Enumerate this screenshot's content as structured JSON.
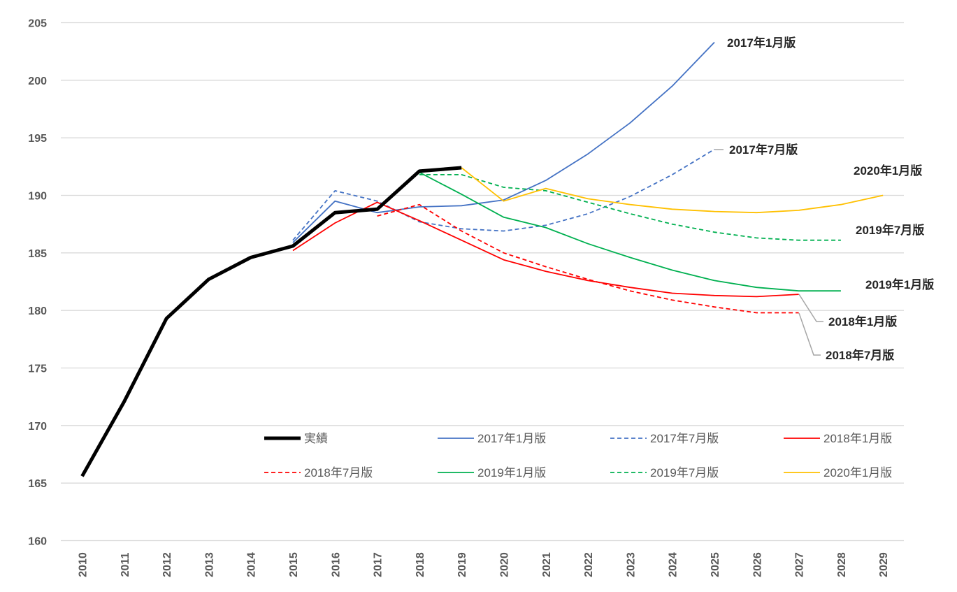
{
  "chart_data": {
    "type": "line",
    "x": [
      2010,
      2011,
      2012,
      2013,
      2014,
      2015,
      2016,
      2017,
      2018,
      2019,
      2020,
      2021,
      2022,
      2023,
      2024,
      2025,
      2026,
      2027,
      2028,
      2029
    ],
    "x_tick_labels": [
      "2010",
      "2011",
      "2012",
      "2013",
      "2014",
      "2015",
      "2016",
      "2017",
      "2018",
      "2019",
      "2020",
      "2021",
      "2022",
      "2023",
      "2024",
      "2025",
      "2026",
      "2027",
      "2028",
      "2029"
    ],
    "y_tick_labels": [
      "205",
      "200",
      "195",
      "190",
      "185",
      "180",
      "175",
      "170",
      "165",
      "160"
    ],
    "ylim": [
      160,
      205
    ],
    "grid": "horizontal",
    "legend_placement": "bottom-inside",
    "series": [
      {
        "name": "実績",
        "color": "#000000",
        "dash": "solid",
        "width": "thick",
        "points": [
          [
            2010,
            165.6
          ],
          [
            2011,
            172.1
          ],
          [
            2012,
            179.3
          ],
          [
            2013,
            182.7
          ],
          [
            2014,
            184.6
          ],
          [
            2015,
            185.6
          ],
          [
            2016,
            188.5
          ],
          [
            2017,
            188.8
          ],
          [
            2018,
            192.1
          ],
          [
            2019,
            192.4
          ]
        ]
      },
      {
        "name": "2017年1月版",
        "color": "#4472C4",
        "dash": "solid",
        "points": [
          [
            2015,
            185.9
          ],
          [
            2016,
            189.5
          ],
          [
            2017,
            188.5
          ],
          [
            2018,
            189.0
          ],
          [
            2019,
            189.1
          ],
          [
            2020,
            189.6
          ],
          [
            2021,
            191.3
          ],
          [
            2022,
            193.6
          ],
          [
            2023,
            196.3
          ],
          [
            2024,
            199.5
          ],
          [
            2025,
            203.3
          ]
        ]
      },
      {
        "name": "2017年7月版",
        "color": "#4472C4",
        "dash": "dashed",
        "points": [
          [
            2015,
            186.1
          ],
          [
            2016,
            190.4
          ],
          [
            2017,
            189.5
          ],
          [
            2018,
            187.7
          ],
          [
            2019,
            187.1
          ],
          [
            2020,
            186.9
          ],
          [
            2021,
            187.4
          ],
          [
            2022,
            188.4
          ],
          [
            2023,
            189.9
          ],
          [
            2024,
            191.8
          ],
          [
            2025,
            194.0
          ]
        ]
      },
      {
        "name": "2018年1月版",
        "color": "#FF0000",
        "dash": "solid",
        "points": [
          [
            2015,
            185.2
          ],
          [
            2016,
            187.6
          ],
          [
            2017,
            189.4
          ],
          [
            2018,
            187.8
          ],
          [
            2019,
            186.1
          ],
          [
            2020,
            184.4
          ],
          [
            2021,
            183.4
          ],
          [
            2022,
            182.6
          ],
          [
            2023,
            182.0
          ],
          [
            2024,
            181.5
          ],
          [
            2025,
            181.3
          ],
          [
            2026,
            181.2
          ],
          [
            2027,
            181.4
          ]
        ]
      },
      {
        "name": "2018年7月版",
        "color": "#FF0000",
        "dash": "dashed",
        "points": [
          [
            2017,
            188.2
          ],
          [
            2018,
            189.2
          ],
          [
            2019,
            186.9
          ],
          [
            2020,
            185.0
          ],
          [
            2021,
            183.8
          ],
          [
            2022,
            182.7
          ],
          [
            2023,
            181.7
          ],
          [
            2024,
            180.9
          ],
          [
            2025,
            180.3
          ],
          [
            2026,
            179.8
          ],
          [
            2027,
            179.8
          ]
        ]
      },
      {
        "name": "2019年1月版",
        "color": "#00B050",
        "dash": "solid",
        "points": [
          [
            2018,
            192.0
          ],
          [
            2019,
            190.1
          ],
          [
            2020,
            188.1
          ],
          [
            2021,
            187.2
          ],
          [
            2022,
            185.8
          ],
          [
            2023,
            184.6
          ],
          [
            2024,
            183.5
          ],
          [
            2025,
            182.6
          ],
          [
            2026,
            182.0
          ],
          [
            2027,
            181.7
          ],
          [
            2028,
            181.7
          ]
        ]
      },
      {
        "name": "2019年7月版",
        "color": "#00B050",
        "dash": "dashed",
        "points": [
          [
            2018,
            191.8
          ],
          [
            2019,
            191.8
          ],
          [
            2020,
            190.7
          ],
          [
            2021,
            190.4
          ],
          [
            2022,
            189.4
          ],
          [
            2023,
            188.4
          ],
          [
            2024,
            187.5
          ],
          [
            2025,
            186.8
          ],
          [
            2026,
            186.3
          ],
          [
            2027,
            186.1
          ],
          [
            2028,
            186.1
          ]
        ]
      },
      {
        "name": "2020年1月版",
        "color": "#FFC000",
        "dash": "solid",
        "points": [
          [
            2019,
            192.4
          ],
          [
            2020,
            189.5
          ],
          [
            2021,
            190.6
          ],
          [
            2022,
            189.7
          ],
          [
            2023,
            189.2
          ],
          [
            2024,
            188.8
          ],
          [
            2025,
            188.6
          ],
          [
            2026,
            188.5
          ],
          [
            2027,
            188.7
          ],
          [
            2028,
            189.2
          ],
          [
            2029,
            190.0
          ]
        ]
      }
    ],
    "end_labels": [
      "2017年1月版",
      "2017年7月版",
      "2020年1月版",
      "2019年7月版",
      "2019年1月版",
      "2018年1月版",
      "2018年7月版"
    ]
  }
}
